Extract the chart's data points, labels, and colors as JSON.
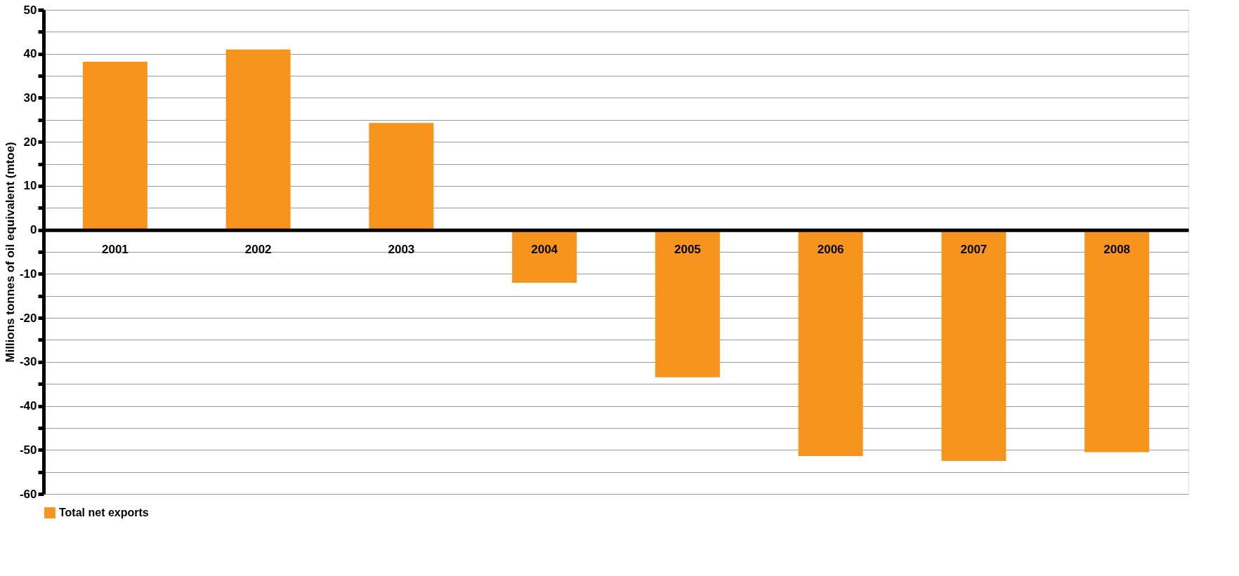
{
  "chart_data": {
    "type": "bar",
    "ylabel": "Millions tonnes of oil equivalent (mtoe)",
    "categories": [
      "2001",
      "2002",
      "2003",
      "2004",
      "2005",
      "2006",
      "2007",
      "2008"
    ],
    "series": [
      {
        "name": "Total net exports",
        "color": "#f7941d",
        "values": [
          38.2,
          41.0,
          24.3,
          -12.0,
          -33.5,
          -51.4,
          -52.5,
          -50.5
        ]
      }
    ],
    "ylim": [
      -60,
      50
    ],
    "yticks": [
      -60,
      {
        "value": -55,
        "label": null
      },
      -50,
      {
        "value": -45,
        "label": null
      },
      -40,
      {
        "value": -35,
        "label": null
      },
      -30,
      {
        "value": -25,
        "label": null
      },
      -20,
      {
        "value": -15,
        "label": null
      },
      -10,
      {
        "value": -5,
        "label": null
      },
      0,
      {
        "value": 5,
        "label": null
      },
      10,
      {
        "value": 15,
        "label": null
      },
      20,
      {
        "value": 25,
        "label": null
      },
      30,
      {
        "value": 35,
        "label": null
      },
      40,
      {
        "value": 45,
        "label": null
      },
      50
    ],
    "grid": "y",
    "legend": "bottom"
  }
}
